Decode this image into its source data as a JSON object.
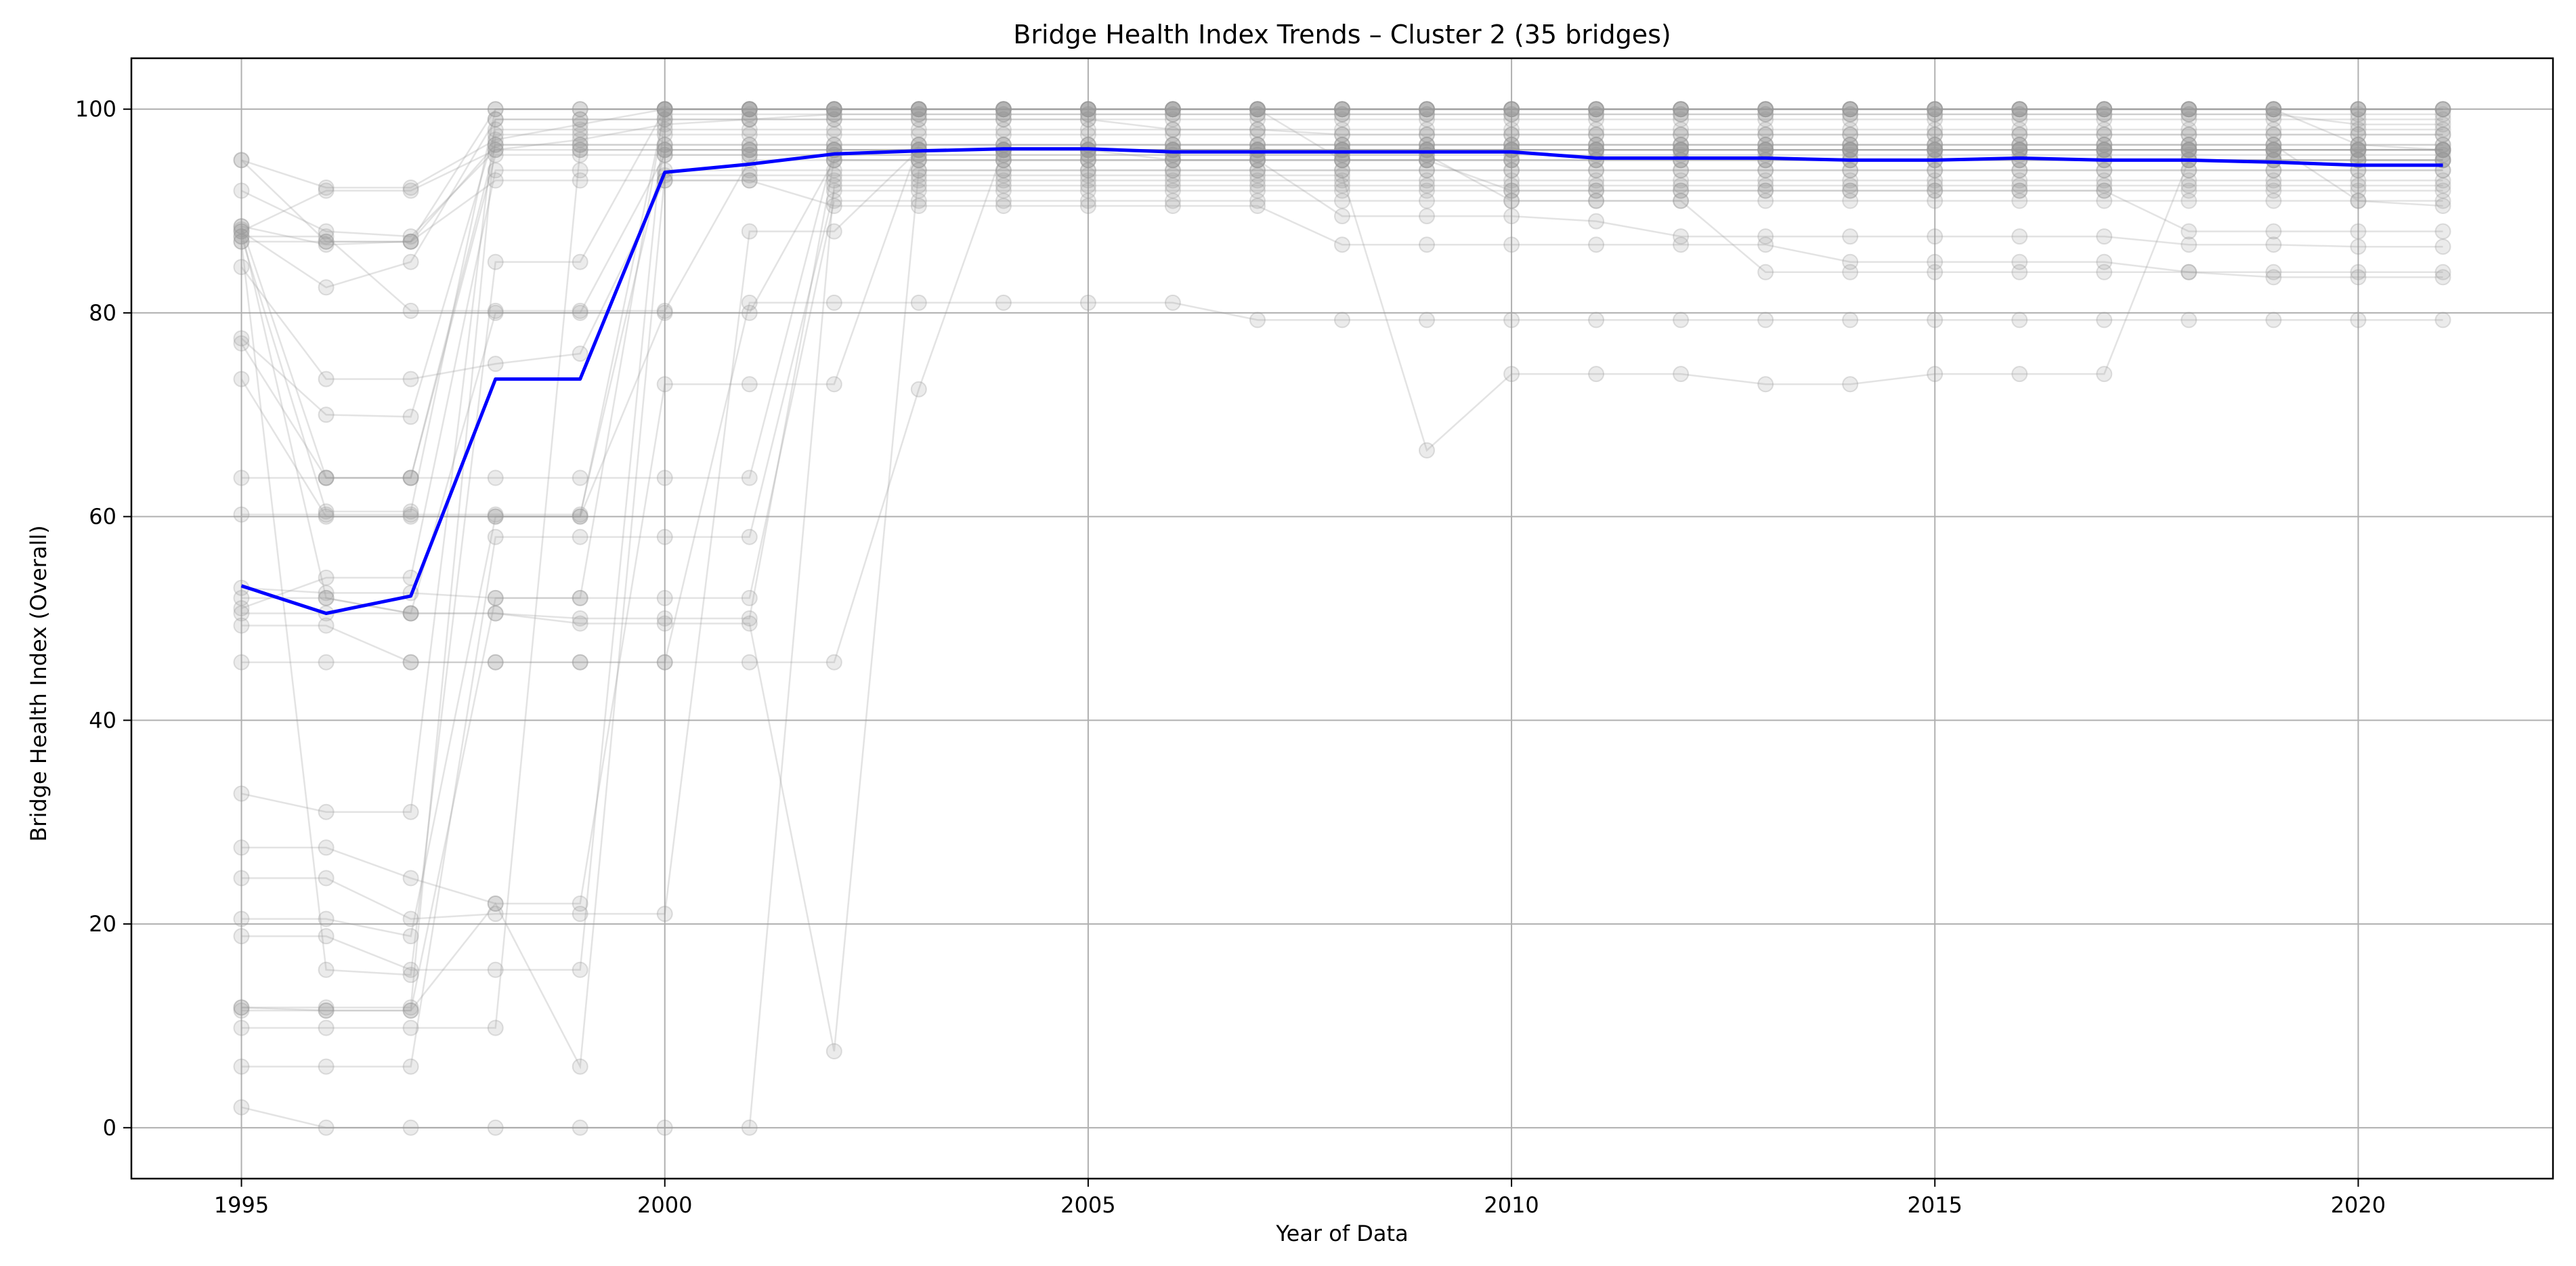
{
  "chart_data": {
    "type": "line",
    "title": "Bridge Health Index Trends – Cluster 2 (35 bridges)",
    "xlabel": "Year of Data",
    "ylabel": "Bridge Health Index (Overall)",
    "xlim": [
      1993.7,
      2022.3
    ],
    "ylim": [
      -5,
      105
    ],
    "x_ticks": [
      1995,
      2000,
      2005,
      2010,
      2015,
      2020
    ],
    "y_ticks": [
      0,
      20,
      40,
      60,
      80,
      100
    ],
    "grid": true,
    "legend": "none",
    "colors": {
      "mean_line": "#0000ff",
      "individual": "#999999",
      "grid": "#b0b0b0",
      "axes": "#000000"
    },
    "x": [
      1995,
      1996,
      1997,
      1998,
      1999,
      2000,
      2001,
      2002,
      2003,
      2004,
      2005,
      2006,
      2007,
      2008,
      2009,
      2010,
      2011,
      2012,
      2013,
      2014,
      2015,
      2016,
      2017,
      2018,
      2019,
      2020,
      2021
    ],
    "series": [
      {
        "role": "mean",
        "values": [
          53.2,
          50.5,
          52.2,
          73.5,
          73.5,
          93.8,
          94.6,
          95.6,
          95.9,
          96.1,
          96.1,
          95.8,
          95.8,
          95.8,
          95.8,
          95.8,
          95.2,
          95.2,
          95.2,
          95.0,
          95.0,
          95.2,
          95.0,
          95.0,
          94.8,
          94.5,
          94.5
        ]
      },
      {
        "values": [
          95.0,
          92.3,
          92.3,
          97.0,
          98.5,
          100,
          100,
          100,
          100,
          100,
          100,
          100,
          100,
          100,
          100,
          100,
          100,
          100,
          100,
          100,
          100,
          100,
          100,
          100,
          100,
          100,
          100
        ]
      },
      {
        "values": [
          92.0,
          88.0,
          87.5,
          96.0,
          97.0,
          98.5,
          99.0,
          99.5,
          99.5,
          99.5,
          99.5,
          99.5,
          99.5,
          99.5,
          99.5,
          99.5,
          99.5,
          99.5,
          99.5,
          99.5,
          99.5,
          99.5,
          99.5,
          99.5,
          99.5,
          98.5,
          98.5
        ]
      },
      {
        "values": [
          88.5,
          86.7,
          87.0,
          100,
          100,
          100,
          100,
          100,
          100,
          100,
          100,
          100,
          100,
          100,
          100,
          100,
          100,
          100,
          100,
          100,
          100,
          100,
          100,
          100,
          100,
          96.5,
          96.0
        ]
      },
      {
        "values": [
          88.0,
          82.5,
          85.0,
          99.0,
          99.0,
          99.0,
          99.0,
          99.0,
          99.0,
          99.0,
          99.0,
          98.0,
          98.0,
          98.0,
          98.0,
          98.0,
          98.0,
          98.0,
          98.0,
          98.0,
          98.0,
          98.0,
          98.0,
          98.0,
          98.0,
          98.0,
          98.0
        ]
      },
      {
        "values": [
          87.5,
          60.5,
          60.5,
          100,
          100,
          100,
          100,
          100,
          100,
          100,
          100,
          100,
          100,
          100,
          100,
          100,
          100,
          100,
          100,
          100,
          100,
          100,
          100,
          100,
          100,
          100,
          100
        ]
      },
      {
        "values": [
          84.5,
          73.5,
          73.5,
          75.0,
          76.0,
          93.0,
          93.0,
          93.0,
          93.0,
          93.0,
          93.0,
          93.0,
          93.0,
          93.0,
          93.0,
          93.0,
          93.0,
          93.0,
          93.0,
          93.0,
          93.0,
          93.0,
          93.0,
          93.0,
          93.0,
          93.0,
          93.0
        ]
      },
      {
        "values": [
          77.5,
          70.0,
          69.8,
          98.0,
          98.0,
          98.0,
          98.0,
          98.0,
          98.0,
          98.0,
          98.0,
          98.0,
          98.0,
          97.5,
          97.5,
          97.5,
          97.5,
          97.5,
          97.5,
          97.5,
          97.5,
          97.5,
          97.5,
          97.5,
          97.5,
          97.5,
          97.5
        ]
      },
      {
        "values": [
          77.0,
          63.8,
          63.8,
          63.8,
          63.8,
          63.8,
          63.8,
          96.0,
          96.0,
          96.0,
          96.0,
          96.0,
          96.0,
          96.0,
          96.0,
          96.0,
          96.0,
          96.0,
          96.0,
          96.0,
          96.0,
          96.0,
          96.0,
          96.0,
          96.0,
          96.0,
          96.0
        ]
      },
      {
        "values": [
          73.5,
          60.0,
          60.0,
          60.0,
          60.0,
          100,
          100,
          100,
          100,
          100,
          100,
          100,
          100,
          100,
          100,
          100,
          100,
          100,
          100,
          100,
          100,
          100,
          100,
          100,
          100,
          100,
          100
        ]
      },
      {
        "values": [
          63.8,
          63.8,
          63.8,
          96.5,
          96.5,
          96.5,
          96.5,
          96.5,
          96.5,
          96.5,
          96.5,
          96.5,
          96.5,
          96.5,
          96.5,
          96.5,
          96.5,
          96.5,
          96.5,
          96.5,
          96.5,
          96.5,
          96.5,
          96.5,
          96.5,
          96.5,
          96.5
        ]
      },
      {
        "values": [
          60.2,
          60.2,
          60.2,
          60.2,
          60.2,
          96.0,
          96.0,
          96.0,
          96.0,
          96.0,
          96.0,
          96.0,
          96.0,
          96.0,
          96.0,
          96.0,
          96.0,
          96.0,
          96.0,
          96.0,
          96.0,
          96.0,
          96.0,
          96.0,
          96.0,
          96.0,
          96.0
        ]
      },
      {
        "values": [
          53.0,
          52.5,
          52.5,
          52.0,
          52.0,
          100,
          100,
          100,
          100,
          100,
          100,
          100,
          100,
          100,
          100,
          100,
          100,
          100,
          100,
          100,
          100,
          100,
          100,
          100,
          100,
          100,
          100
        ]
      },
      {
        "values": [
          52.0,
          52.0,
          50.5,
          50.5,
          50.0,
          50.0,
          50.0,
          95.0,
          95.0,
          95.0,
          95.0,
          95.0,
          95.0,
          95.0,
          95.0,
          95.0,
          95.0,
          95.0,
          95.0,
          95.0,
          95.0,
          95.0,
          95.0,
          95.0,
          95.0,
          95.0,
          95.0
        ]
      },
      {
        "values": [
          51.0,
          54.0,
          54.0,
          94.0,
          94.0,
          94.0,
          94.0,
          94.0,
          94.0,
          94.0,
          94.0,
          94.0,
          94.0,
          94.0,
          94.0,
          94.0,
          94.0,
          94.0,
          94.0,
          94.0,
          94.0,
          94.0,
          94.0,
          94.0,
          94.0,
          94.0,
          94.0
        ]
      },
      {
        "values": [
          50.5,
          50.5,
          50.5,
          80.0,
          80.0,
          95.5,
          95.5,
          95.5,
          95.5,
          95.5,
          95.5,
          95.5,
          95.5,
          95.5,
          95.5,
          95.5,
          95.5,
          95.5,
          95.5,
          95.5,
          95.5,
          95.5,
          95.5,
          95.5,
          95.5,
          95.5,
          95.5
        ]
      },
      {
        "values": [
          49.3,
          49.3,
          45.7,
          45.7,
          45.7,
          45.7,
          45.7,
          45.7,
          72.5,
          96.0,
          96.0,
          96.0,
          96.0,
          96.0,
          96.0,
          96.0,
          96.0,
          96.0,
          96.0,
          96.0,
          96.0,
          96.0,
          96.0,
          96.0,
          96.0,
          96.0,
          96.0
        ]
      },
      {
        "values": [
          45.7,
          45.7,
          45.7,
          45.7,
          45.7,
          45.7,
          81.0,
          81.0,
          81.0,
          81.0,
          81.0,
          81.0,
          79.3,
          79.3,
          79.3,
          79.3,
          79.3,
          79.3,
          79.3,
          79.3,
          79.3,
          79.3,
          79.3,
          79.3,
          79.3,
          79.3,
          79.3
        ]
      },
      {
        "values": [
          32.8,
          31.0,
          31.0,
          99.0,
          99.0,
          99.0,
          99.0,
          99.0,
          99.0,
          99.0,
          99.0,
          99.0,
          99.0,
          99.0,
          99.0,
          99.0,
          99.0,
          99.0,
          99.0,
          99.0,
          99.0,
          99.0,
          99.0,
          99.0,
          99.0,
          99.0,
          99.0
        ]
      },
      {
        "values": [
          27.5,
          27.5,
          24.5,
          22.0,
          22.0,
          73.0,
          73.0,
          73.0,
          96.5,
          96.5,
          96.5,
          96.5,
          96.5,
          96.5,
          96.5,
          96.5,
          96.5,
          96.5,
          96.5,
          96.5,
          96.5,
          96.5,
          96.5,
          96.5,
          96.5,
          96.5,
          96.5
        ]
      },
      {
        "values": [
          24.5,
          24.5,
          20.5,
          21.0,
          21.0,
          21.0,
          88.0,
          88.0,
          96.0,
          96.0,
          96.0,
          96.0,
          96.0,
          96.0,
          96.0,
          96.0,
          96.0,
          96.0,
          96.0,
          96.0,
          96.0,
          96.0,
          96.0,
          96.0,
          96.0,
          96.0,
          96.0
        ]
      },
      {
        "values": [
          20.5,
          20.5,
          18.8,
          60.0,
          60.0,
          80.0,
          80.0,
          95.0,
          95.0,
          95.0,
          95.0,
          95.0,
          95.0,
          95.0,
          95.0,
          95.0,
          95.0,
          95.0,
          95.0,
          95.0,
          95.0,
          95.0,
          95.0,
          95.0,
          95.0,
          95.0,
          95.0
        ]
      },
      {
        "values": [
          18.8,
          18.8,
          15.5,
          15.5,
          15.5,
          99.5,
          99.5,
          99.5,
          99.5,
          99.5,
          99.5,
          99.5,
          99.5,
          99.5,
          99.5,
          99.5,
          99.5,
          99.5,
          99.5,
          99.5,
          99.5,
          99.5,
          99.5,
          99.5,
          99.5,
          99.5,
          99.5
        ]
      },
      {
        "values": [
          11.8,
          11.8,
          11.8,
          97.5,
          97.5,
          97.5,
          97.5,
          97.5,
          97.5,
          97.5,
          97.5,
          97.5,
          97.5,
          97.5,
          97.5,
          97.5,
          97.5,
          97.5,
          97.5,
          97.5,
          97.5,
          97.5,
          97.5,
          97.5,
          97.5,
          97.5,
          97.5
        ]
      },
      {
        "values": [
          11.5,
          11.5,
          11.5,
          52.0,
          52.0,
          52.0,
          52.0,
          91.0,
          91.0,
          91.0,
          91.0,
          91.0,
          91.0,
          91.0,
          91.0,
          91.0,
          91.0,
          91.0,
          91.0,
          91.0,
          91.0,
          91.0,
          91.0,
          91.0,
          91.0,
          91.0,
          91.0
        ]
      },
      {
        "values": [
          9.8,
          9.8,
          9.8,
          9.8,
          96.0,
          96.0,
          96.0,
          96.0,
          96.0,
          96.0,
          96.0,
          96.0,
          96.0,
          96.0,
          96.0,
          96.0,
          96.0,
          96.0,
          96.0,
          96.0,
          96.0,
          96.0,
          96.0,
          96.0,
          96.0,
          96.0,
          96.0
        ]
      },
      {
        "values": [
          6.0,
          6.0,
          6.0,
          58.0,
          58.0,
          58.0,
          58.0,
          92.0,
          92.0,
          92.0,
          92.0,
          92.0,
          92.0,
          92.0,
          92.0,
          92.0,
          92.0,
          92.0,
          92.0,
          92.0,
          92.0,
          92.0,
          92.0,
          92.0,
          92.0,
          92.0,
          92.0
        ]
      },
      {
        "values": [
          2.0,
          0.0,
          0.0,
          0.0,
          0.0,
          0.0,
          0.0,
          92.5,
          92.5,
          92.5,
          92.5,
          92.5,
          92.5,
          92.5,
          92.5,
          92.5,
          92.5,
          92.5,
          92.5,
          92.5,
          92.5,
          92.5,
          92.5,
          92.5,
          92.5,
          92.5,
          92.5
        ]
      },
      {
        "values": [
          88.2,
          52.0,
          50.5,
          50.5,
          49.5,
          49.5,
          49.5,
          7.5,
          94.0,
          94.0,
          94.0,
          94.0,
          94.0,
          94.0,
          94.0,
          94.0,
          94.0,
          94.0,
          94.0,
          94.0,
          94.0,
          94.0,
          94.0,
          94.0,
          94.0,
          94.0,
          94.0
        ]
      },
      {
        "values": [
          88.0,
          92.0,
          92.0,
          96.0,
          96.0,
          96.0,
          96.0,
          96.0,
          96.0,
          96.0,
          96.0,
          95.0,
          95.0,
          89.5,
          89.5,
          89.5,
          89.0,
          87.5,
          87.5,
          87.5,
          87.5,
          87.5,
          87.5,
          86.7,
          86.7,
          86.5,
          86.5
        ]
      },
      {
        "values": [
          87.0,
          87.0,
          87.0,
          93.0,
          93.0,
          93.0,
          93.0,
          90.5,
          90.5,
          90.5,
          90.5,
          90.5,
          90.5,
          86.7,
          86.7,
          86.7,
          86.7,
          86.7,
          86.7,
          85.0,
          85.0,
          85.0,
          85.0,
          84.0,
          84.0,
          84.0,
          84.0
        ]
      },
      {
        "values": [
          88.5,
          63.8,
          63.8,
          95.5,
          95.5,
          95.5,
          95.5,
          95.5,
          95.5,
          95.5,
          95.5,
          95.5,
          95.5,
          95.5,
          95.5,
          91.0,
          91.0,
          91.0,
          84.0,
          84.0,
          84.0,
          84.0,
          84.0,
          84.0,
          83.5,
          83.5,
          83.5
        ]
      },
      {
        "values": [
          87.5,
          87.5,
          80.2,
          80.2,
          80.2,
          80.2,
          95.0,
          95.0,
          95.0,
          95.0,
          95.0,
          95.0,
          95.0,
          95.0,
          95.0,
          92.0,
          92.0,
          92.0,
          92.0,
          92.0,
          92.0,
          92.0,
          92.0,
          88.0,
          88.0,
          88.0,
          88.0
        ]
      },
      {
        "values": [
          87.0,
          15.5,
          15.0,
          85.0,
          85.0,
          100,
          100,
          100,
          100,
          100,
          100,
          100,
          100,
          95.0,
          95.0,
          95.0,
          95.0,
          95.0,
          95.0,
          95.0,
          95.0,
          95.0,
          95.0,
          95.0,
          95.0,
          95.0,
          95.0
        ]
      },
      {
        "values": [
          11.8,
          11.5,
          11.5,
          22.0,
          6.0,
          93.5,
          93.5,
          93.5,
          93.5,
          93.5,
          93.5,
          93.5,
          93.5,
          93.5,
          66.5,
          74.0,
          74.0,
          74.0,
          73.0,
          73.0,
          74.0,
          74.0,
          74.0,
          95.0,
          95.0,
          95.0,
          95.0
        ]
      },
      {
        "values": [
          95.0,
          87.0,
          87.0,
          96.5,
          96.5,
          96.5,
          96.5,
          96.5,
          96.5,
          96.5,
          96.5,
          96.5,
          96.5,
          96.5,
          96.5,
          96.5,
          96.5,
          96.5,
          96.5,
          96.5,
          96.5,
          96.5,
          96.5,
          96.5,
          96.5,
          91.0,
          90.5
        ]
      }
    ]
  }
}
